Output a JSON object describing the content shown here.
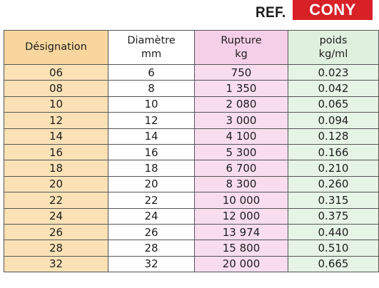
{
  "ref": {
    "label": "REF.",
    "product": "CONY",
    "badge_color": "#d82027"
  },
  "table": {
    "headers": {
      "designation": "Désignation",
      "diametre_line1": "Diamètre",
      "diametre_line2": "mm",
      "rupture_line1": "Rupture",
      "rupture_line2": "kg",
      "poids_line1": "poids",
      "poids_line2": "kg/ml"
    },
    "column_colors": {
      "designation": "#fbe2b6",
      "diametre": "#ffffff",
      "rupture": "#f8ddef",
      "poids": "#e6f4e6"
    },
    "rows": [
      {
        "designation": "06",
        "diametre": "6",
        "rupture": "750",
        "poids": "0.023"
      },
      {
        "designation": "08",
        "diametre": "8",
        "rupture": "1 350",
        "poids": "0.042"
      },
      {
        "designation": "10",
        "diametre": "10",
        "rupture": "2 080",
        "poids": "0.065"
      },
      {
        "designation": "12",
        "diametre": "12",
        "rupture": "3 000",
        "poids": "0.094"
      },
      {
        "designation": "14",
        "diametre": "14",
        "rupture": "4 100",
        "poids": "0.128"
      },
      {
        "designation": "16",
        "diametre": "16",
        "rupture": "5 300",
        "poids": "0.166"
      },
      {
        "designation": "18",
        "diametre": "18",
        "rupture": "6 700",
        "poids": "0.210"
      },
      {
        "designation": "20",
        "diametre": "20",
        "rupture": "8 300",
        "poids": "0.260"
      },
      {
        "designation": "22",
        "diametre": "22",
        "rupture": "10 000",
        "poids": "0.315"
      },
      {
        "designation": "24",
        "diametre": "24",
        "rupture": "12 000",
        "poids": "0.375"
      },
      {
        "designation": "26",
        "diametre": "26",
        "rupture": "13 974",
        "poids": "0.440"
      },
      {
        "designation": "28",
        "diametre": "28",
        "rupture": "15 800",
        "poids": "0.510"
      },
      {
        "designation": "32",
        "diametre": "32",
        "rupture": "20 000",
        "poids": "0.665"
      }
    ]
  }
}
